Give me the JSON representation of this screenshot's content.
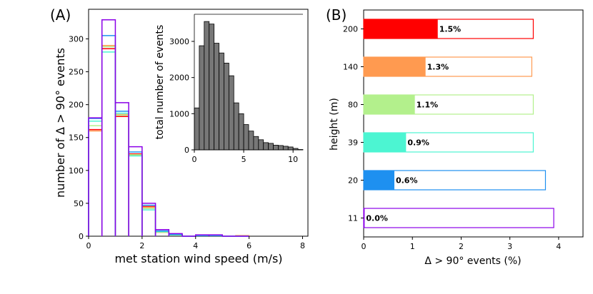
{
  "chart_data": [
    {
      "panel": "(A)",
      "type": "bar",
      "style": "step-histogram",
      "xlabel": "met station wind speed (m/s)",
      "ylabel": "number of Δ > 90° events",
      "xlim": [
        0,
        8.2
      ],
      "ylim": [
        0,
        345
      ],
      "xticks": [
        0,
        2,
        4,
        6,
        8
      ],
      "yticks": [
        0,
        50,
        100,
        150,
        200,
        250,
        300
      ],
      "bin_edges": [
        0,
        0.5,
        1,
        1.5,
        2,
        2.5,
        3,
        3.5,
        4,
        4.5,
        5,
        5.5,
        6
      ],
      "series": [
        {
          "name": "200 m",
          "color": "#ff0000",
          "values": [
            162,
            285,
            182,
            125,
            45,
            6,
            2,
            0,
            1,
            1,
            0,
            0
          ]
        },
        {
          "name": "140 m",
          "color": "#ff9a50",
          "values": [
            160,
            290,
            185,
            123,
            44,
            6,
            2,
            0,
            1,
            1,
            0,
            1
          ]
        },
        {
          "name": "80 m",
          "color": "#b3f08c",
          "values": [
            168,
            288,
            184,
            124,
            42,
            6,
            2,
            0,
            1,
            1,
            0,
            0
          ]
        },
        {
          "name": "39 m",
          "color": "#4cf5d2",
          "values": [
            175,
            280,
            187,
            122,
            40,
            7,
            2,
            0,
            1,
            1,
            0,
            0
          ]
        },
        {
          "name": "20 m",
          "color": "#1e90f0",
          "values": [
            179,
            305,
            190,
            128,
            47,
            8,
            3,
            0,
            1,
            1,
            0,
            0
          ]
        },
        {
          "name": "11 m",
          "color": "#8b00e8",
          "values": [
            180,
            329,
            203,
            136,
            50,
            10,
            4,
            0,
            2,
            2,
            0,
            0
          ]
        }
      ]
    },
    {
      "panel": "(A) inset",
      "type": "bar",
      "ylabel": "total number of events",
      "xlabel": "",
      "xlim": [
        0,
        11
      ],
      "ylim": [
        0,
        3750
      ],
      "xticks": [
        0,
        5,
        10
      ],
      "yticks": [
        0,
        1000,
        2000,
        3000
      ],
      "bin_width": 0.5,
      "values": [
        1160,
        2880,
        3550,
        3480,
        2950,
        2680,
        2400,
        2050,
        1300,
        1000,
        700,
        520,
        370,
        280,
        200,
        180,
        130,
        120,
        100,
        80,
        40,
        10
      ],
      "bar_color": "#777777"
    },
    {
      "panel": "(B)",
      "type": "bar",
      "orientation": "horizontal",
      "xlabel": "Δ > 90° events (%)",
      "ylabel": "height (m)",
      "xlim": [
        0,
        4.5
      ],
      "xticks": [
        0,
        1,
        2,
        3,
        4
      ],
      "categories": [
        "11",
        "20",
        "39",
        "80",
        "140",
        "200"
      ],
      "values": [
        0.02,
        0.63,
        0.87,
        1.05,
        1.27,
        1.52
      ],
      "outline_values": [
        3.9,
        3.73,
        3.48,
        3.48,
        3.45,
        3.48
      ],
      "data_labels": [
        "0.0%",
        "0.6%",
        "0.9%",
        "1.1%",
        "1.3%",
        "1.5%"
      ],
      "colors": [
        "#8b00e8",
        "#1e90f0",
        "#4cf5d2",
        "#b3f08c",
        "#ff9a50",
        "#ff0000"
      ]
    }
  ],
  "labels": {
    "panel_a": "(A)",
    "panel_b": "(B)",
    "a_xlabel": "met station wind speed (m/s)",
    "a_ylabel": "number of Δ > 90° events",
    "inset_ylabel": "total number of events",
    "b_xlabel": "Δ > 90° events (%)",
    "b_ylabel": "height (m)"
  }
}
